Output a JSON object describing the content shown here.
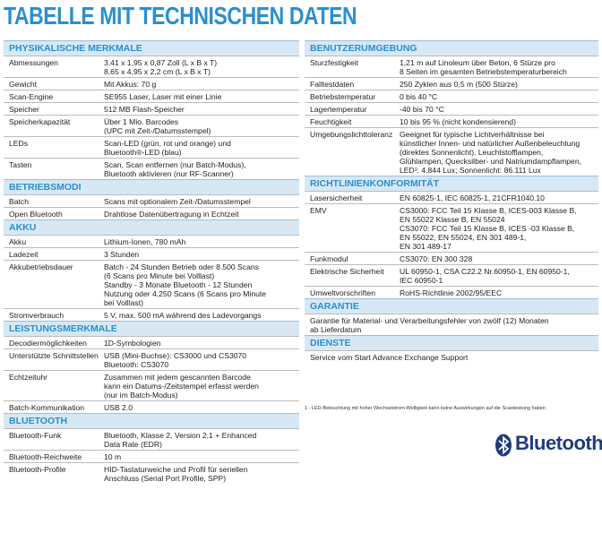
{
  "header": {
    "title": "TABELLE MIT TECHNISCHEN DATEN"
  },
  "left_sections": [
    {
      "title": "PHYSIKALISCHE MERKMALE",
      "rows": [
        [
          "Abmessungen",
          "3,41 x 1,95 x 0,87 Zoll (L x B x T)",
          "8,65 x 4,95 x 2,2 cm (L x B x T)"
        ],
        [
          "Gewicht",
          "Mit Akkus: 70 g"
        ],
        [
          "Scan-Engine",
          "SE955 Laser, Laser mit einer Linie"
        ],
        [
          "Speicher",
          "512 MB Flash-Speicher"
        ],
        [
          "Speicherkapazität",
          "Über 1 Mio. Barcodes",
          "(UPC mit Zeit-/Datumsstempel)"
        ],
        [
          "LEDs",
          "Scan-LED (grün, rot und orange) und",
          "Bluetooth®-LED (blau)"
        ],
        [
          "Tasten",
          "Scan, Scan entfernen (nur Batch-Modus),",
          "Bluetooth aktivieren (nur RF-Scanner)"
        ]
      ]
    },
    {
      "title": "BETRIEBSMODI",
      "rows": [
        [
          "Batch",
          "Scans mit optionalem Zeit-/Datumsstempel"
        ],
        [
          "Open Bluetooth",
          "Drahtlose Datenübertragung in Echtzeit"
        ]
      ]
    },
    {
      "title": "AKKU",
      "rows": [
        [
          "Akku",
          "Lithium-Ionen, 780 mAh"
        ],
        [
          "Ladezeit",
          "3 Stunden"
        ],
        [
          "Akkubetriebsdauer",
          "Batch - 24 Stunden Betrieb oder 8.500 Scans",
          "(6 Scans pro Minute bei Volllast)",
          "Standby - 3 Monate Bluetooth - 12 Stunden",
          "Nutzung oder 4.250 Scans (6 Scans pro Minute",
          "bei Volllast)"
        ],
        [
          "Stromverbrauch",
          "5 V, max. 500 mA während des Ladevorgangs"
        ]
      ]
    },
    {
      "title": "LEISTUNGSMERKMALE",
      "rows": [
        [
          "Decodiermöglichkeiten",
          "1D-Symbologien"
        ],
        [
          "Unterstützte Schnittstellen",
          "USB (Mini-Buchse): CS3000 und CS3070",
          "Bluetooth: CS3070"
        ],
        [
          "Echtzeituhr",
          "Zusammen mit jedem gescannten Barcode",
          "kann ein Datums-/Zeitstempel erfasst werden",
          "(nur im Batch-Modus)"
        ],
        [
          "Batch-Kommunikation",
          "USB 2.0"
        ]
      ]
    },
    {
      "title": "BLUETOOTH",
      "rows": [
        [
          "Bluetooth-Funk",
          "Bluetooth, Klasse 2, Version 2.1 + Enhanced",
          "Data Rate (EDR)"
        ],
        [
          "Bluetooth-Reichweite",
          "10 m"
        ],
        [
          "Bluetooth-Profile",
          "HID-Tastaturweiche und Profil für seriellen",
          "Anschluss (Serial Port Profile, SPP)"
        ]
      ]
    }
  ],
  "right_sections": [
    {
      "title": "BENUTZERUMGEBUNG",
      "rows": [
        [
          "Sturzfestigkeit",
          "1,21 m auf Linoleum über Beton, 6 Stürze pro",
          "8 Seiten im gesamten Betriebstemperaturbereich"
        ],
        [
          "Falltestdaten",
          "250 Zyklen aus 0,5 m (500 Stürze)"
        ],
        [
          "Betriebstemperatur",
          "0 bis 40 °C"
        ],
        [
          "Lagertemperatur",
          "-40 bis 70 °C"
        ],
        [
          "Feuchtigkeit",
          "10 bis 95 % (nicht kondensierend)"
        ],
        [
          "Umgebungslichttoleranz",
          "Geeignet für typische Lichtverhältnisse bei",
          "künstlicher Innen- und natürlicher Außenbeleuchtung",
          "(direktes Sonnenlicht). Leuchtstofflampen,",
          "Glühlampen, Quecksilber- und Natriumdampflampen,",
          "LED¹: 4.844 Lux; Sonnenlicht: 86.111 Lux"
        ]
      ]
    },
    {
      "title": "RICHTLINIENKONFORMITÄT",
      "rows": [
        [
          "Lasersicherheit",
          "EN 60825-1, IEC 60825-1, 21CFR1040.10"
        ],
        [
          "EMV",
          "CS3000: FCC Teil 15 Klasse B, ICES-003 Klasse B,",
          "EN 55022 Klasse B, EN 55024",
          "CS3070: FCC Teil 15 Klasse B, ICES -03 Klasse B,",
          "EN 55022, EN 55024, EN 301 489-1,",
          "EN 301 489-17"
        ],
        [
          "Funkmodul",
          "CS3070: EN 300 328"
        ],
        [
          "Elektrische Sicherheit",
          "UL 60950-1, CSA C22.2 Nr.60950-1, EN 60950-1,",
          "IEC 60950-1"
        ],
        [
          "Umweltvorschriften",
          "RoHS-Richtlinie 2002/95/EEC"
        ]
      ]
    },
    {
      "title": "GARANTIE",
      "rows": [
        [
          "Garantie für Material- und Verarbeitungsfehler von zwölf (12) Monaten",
          "ab Lieferdatum"
        ]
      ],
      "full": true
    },
    {
      "title": "DIENSTE",
      "rows": [
        [
          "Service vom Start Advance Exchange Support"
        ]
      ],
      "full": true
    }
  ],
  "footnote": "1 - LED-Beleuchtung mit hoher Wechselstrom-Welligkeit kann keine Auswirkungen auf die Scanleistung haben",
  "logo": {
    "text": "Bluetooth",
    "mark": "®"
  }
}
